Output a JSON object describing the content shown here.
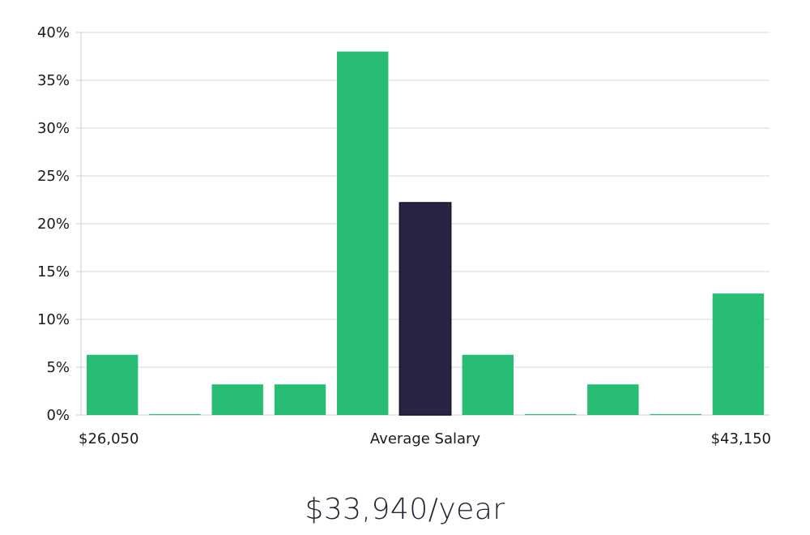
{
  "chart_data": {
    "type": "bar",
    "y_ticks": [
      "0%",
      "5%",
      "10%",
      "15%",
      "20%",
      "25%",
      "30%",
      "35%",
      "40%"
    ],
    "ylim": [
      0,
      40
    ],
    "values": [
      6.3,
      0.1,
      3.2,
      3.2,
      38.0,
      22.2,
      6.3,
      0.1,
      3.2,
      0.1,
      12.7
    ],
    "highlight_index": 5,
    "x_labels": {
      "left": "$26,050",
      "center": "Average Salary",
      "right": "$43,150"
    },
    "colors": {
      "bar": "#27bd74",
      "highlight": "#272444",
      "grid": "#e3e3e3",
      "axis": "#cfcfcf"
    },
    "grid": true
  },
  "salary_text": "$33,940/year"
}
